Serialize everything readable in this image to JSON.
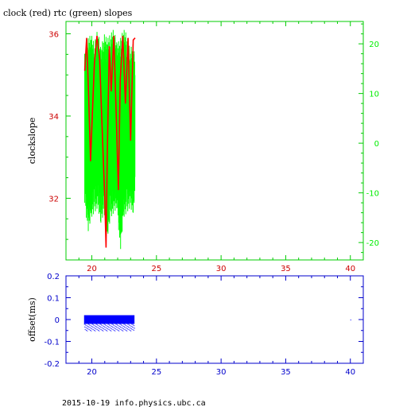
{
  "chart_data": [
    {
      "type": "line",
      "title": "clock (red) rtc (green) slopes",
      "ylabel": "clockslope",
      "xlim": [
        18,
        41
      ],
      "ylim": [
        30.5,
        36.3
      ],
      "y2lim": [
        -23.5,
        24.5
      ],
      "x_ticks": [
        20,
        25,
        30,
        35,
        40
      ],
      "y_ticks": [
        32,
        34,
        36
      ],
      "y2_ticks": [
        -20,
        -10,
        0,
        10,
        20
      ],
      "colors": {
        "frame": "#00cc00",
        "left_axis": "#cc0000",
        "right_axis": "#00ee00",
        "x_axis": "#cc0000"
      },
      "series": [
        {
          "color": "#ff0000",
          "axis": "left",
          "x": [
            19.45,
            19.6,
            19.75,
            19.9,
            20.05,
            20.2,
            20.4,
            20.6,
            20.8,
            21.0,
            21.1,
            21.2,
            21.35,
            21.5,
            21.7,
            21.9,
            22.05,
            22.2,
            22.4,
            22.6,
            22.8,
            23.0,
            23.2,
            23.35
          ],
          "y": [
            35.1,
            35.9,
            34.5,
            32.9,
            34.1,
            35.3,
            35.95,
            35.4,
            33.7,
            32.0,
            30.8,
            33.1,
            35.7,
            34.6,
            35.95,
            33.9,
            32.2,
            34.9,
            35.95,
            34.3,
            35.9,
            33.4,
            35.85,
            35.9
          ]
        },
        {
          "color": "#00ff00",
          "axis": "right",
          "x": [
            19.45,
            19.7,
            19.95,
            20.2,
            20.45,
            20.7,
            20.95,
            21.2,
            21.45,
            21.7,
            21.95,
            22.2,
            22.45,
            22.7,
            22.95,
            23.2,
            23.35
          ],
          "y_max": [
            18,
            21,
            22,
            20,
            23,
            19,
            22,
            21,
            22,
            23,
            20,
            21,
            23,
            22,
            19,
            20,
            17
          ],
          "y_min": [
            -12,
            -18,
            -15,
            -14,
            -13,
            -16,
            -14,
            -19,
            -15,
            -14,
            -13,
            -22,
            -15,
            -14,
            -13,
            -14,
            -10
          ]
        }
      ]
    },
    {
      "type": "scatter",
      "ylabel": "offset(ms)",
      "xlim": [
        18,
        41
      ],
      "ylim": [
        -0.2,
        0.2
      ],
      "x_ticks": [
        20,
        25,
        30,
        35,
        40
      ],
      "y_ticks": [
        -0.2,
        -0.1,
        0,
        0.1,
        0.2
      ],
      "colors": {
        "frame": "#0000cc",
        "points": "#0000ff",
        "ticks": "#0000cc"
      },
      "series": [
        {
          "color": "#0000ff",
          "x_range": [
            19.4,
            23.3
          ],
          "band_min": -0.02,
          "band_max": 0.02,
          "scatter_min": -0.05,
          "outlier": [
            40.0,
            0.0
          ]
        }
      ]
    }
  ],
  "footer": "2015-10-19 info.physics.ubc.ca"
}
